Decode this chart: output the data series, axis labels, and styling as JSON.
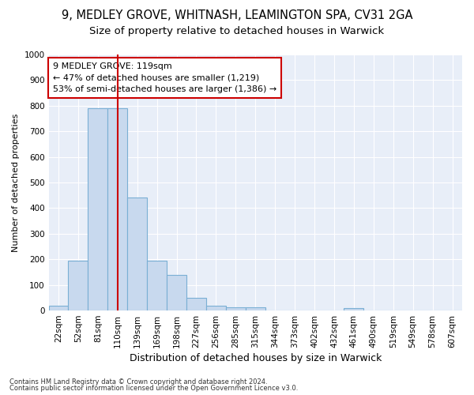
{
  "title1": "9, MEDLEY GROVE, WHITNASH, LEAMINGTON SPA, CV31 2GA",
  "title2": "Size of property relative to detached houses in Warwick",
  "xlabel": "Distribution of detached houses by size in Warwick",
  "ylabel": "Number of detached properties",
  "footer1": "Contains HM Land Registry data © Crown copyright and database right 2024.",
  "footer2": "Contains public sector information licensed under the Open Government Licence v3.0.",
  "bar_labels": [
    "22sqm",
    "52sqm",
    "81sqm",
    "110sqm",
    "139sqm",
    "169sqm",
    "198sqm",
    "227sqm",
    "256sqm",
    "285sqm",
    "315sqm",
    "344sqm",
    "373sqm",
    "402sqm",
    "432sqm",
    "461sqm",
    "490sqm",
    "519sqm",
    "549sqm",
    "578sqm",
    "607sqm"
  ],
  "bar_values": [
    20,
    195,
    790,
    790,
    440,
    195,
    140,
    50,
    18,
    12,
    12,
    0,
    0,
    0,
    0,
    10,
    0,
    0,
    0,
    0,
    0
  ],
  "bar_color": "#c8d9ee",
  "bar_edge_color": "#7aafd4",
  "vline_color": "#cc0000",
  "annotation_text": "9 MEDLEY GROVE: 119sqm\n← 47% of detached houses are smaller (1,219)\n53% of semi-detached houses are larger (1,386) →",
  "annotation_box_color": "white",
  "annotation_box_edge": "#cc0000",
  "ylim": [
    0,
    1000
  ],
  "yticks": [
    0,
    100,
    200,
    300,
    400,
    500,
    600,
    700,
    800,
    900,
    1000
  ],
  "bg_color": "#e8eef8",
  "grid_color": "#ffffff",
  "title1_fontsize": 10.5,
  "title2_fontsize": 9.5,
  "xlabel_fontsize": 9,
  "ylabel_fontsize": 8,
  "tick_fontsize": 7.5,
  "annotation_fontsize": 8,
  "footer_fontsize": 6
}
